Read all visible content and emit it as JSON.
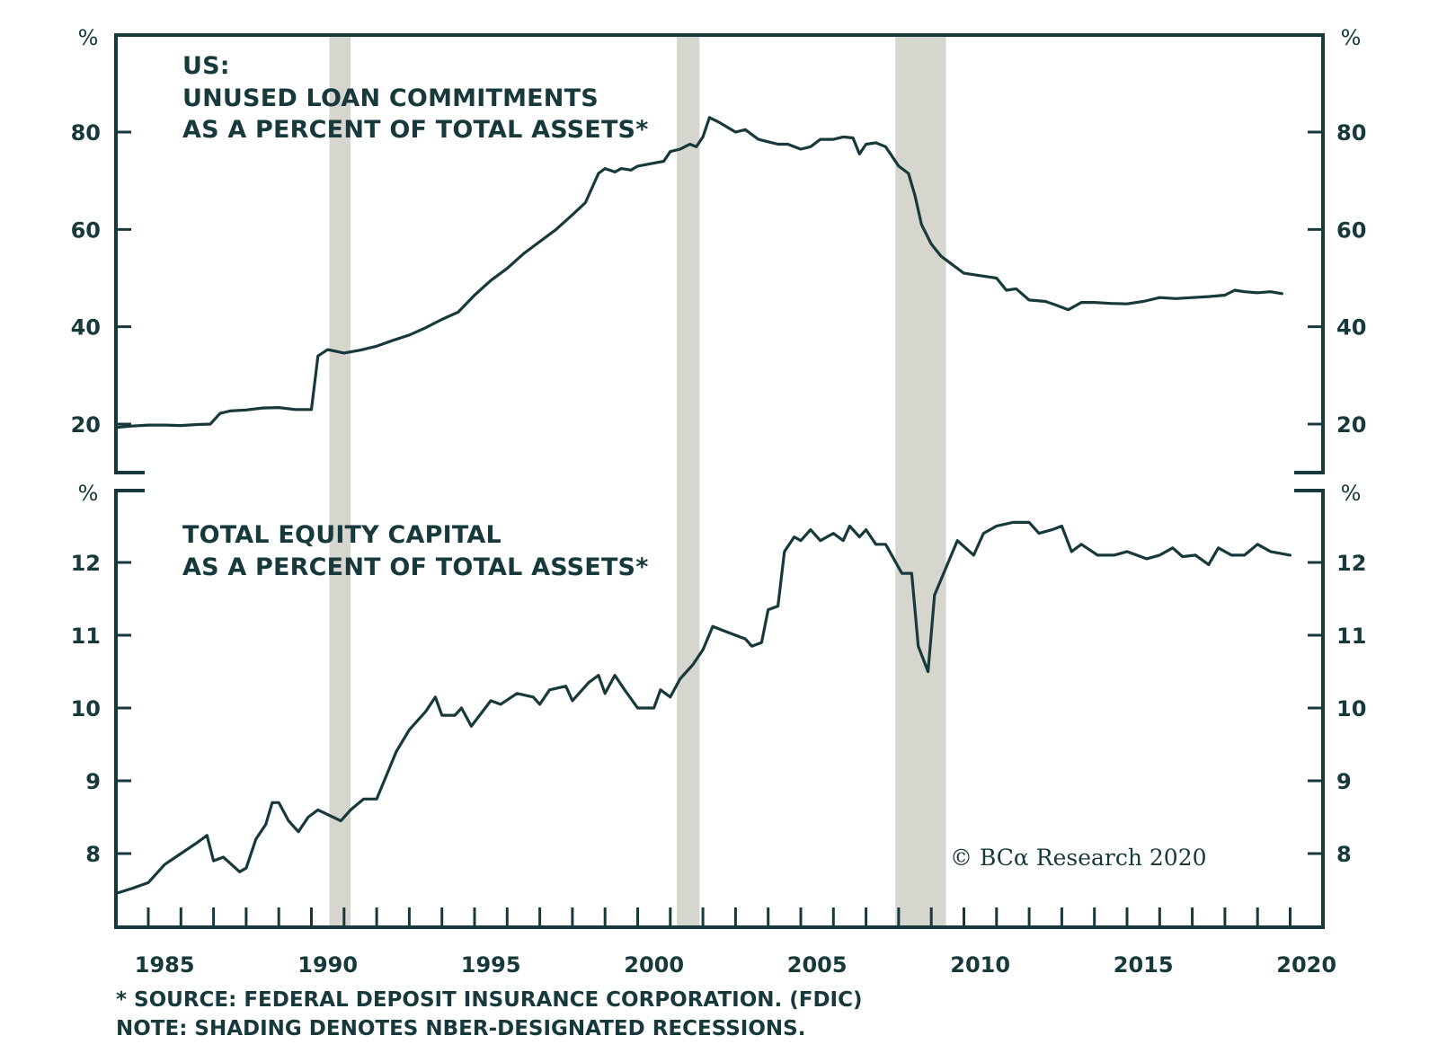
{
  "colors": {
    "line": "#17393c",
    "axis": "#17393c",
    "recession": "#d6d6cf",
    "background": "#ffffff"
  },
  "chart_data": [
    {
      "type": "line",
      "panel": "top",
      "title_lines": [
        "US:",
        "UNUSED LOAN COMMITMENTS",
        "AS A PERCENT OF TOTAL ASSETS*"
      ],
      "ylabel": "%",
      "ylim": [
        10,
        90
      ],
      "yticks": [
        20,
        40,
        60,
        80
      ],
      "ytick_labels": [
        "20",
        "40",
        "60",
        "80"
      ],
      "xlim": [
        1984.0,
        2021.0
      ],
      "grid": false,
      "series": [
        {
          "name": "Unused loan commitments as a percent of total assets",
          "x": [
            1984.0,
            1984.5,
            1985.0,
            1985.5,
            1986.0,
            1986.5,
            1986.9,
            1987.2,
            1987.5,
            1988.0,
            1988.5,
            1989.0,
            1989.5,
            1990.0,
            1990.2,
            1990.5,
            1991.0,
            1991.5,
            1992.0,
            1992.5,
            1993.0,
            1993.5,
            1994.0,
            1994.5,
            1995.0,
            1995.5,
            1996.0,
            1996.5,
            1997.0,
            1997.5,
            1998.0,
            1998.4,
            1998.8,
            1999.0,
            1999.3,
            1999.5,
            1999.8,
            2000.0,
            2000.4,
            2000.8,
            2001.0,
            2001.3,
            2001.6,
            2001.8,
            2002.0,
            2002.2,
            2002.5,
            2003.0,
            2003.3,
            2003.7,
            2004.0,
            2004.3,
            2004.6,
            2005.0,
            2005.3,
            2005.6,
            2006.0,
            2006.3,
            2006.6,
            2006.8,
            2007.0,
            2007.3,
            2007.6,
            2008.0,
            2008.3,
            2008.5,
            2008.7,
            2009.0,
            2009.3,
            2009.6,
            2010.0,
            2010.5,
            2011.0,
            2011.3,
            2011.6,
            2012.0,
            2012.5,
            2012.8,
            2013.2,
            2013.6,
            2014.0,
            2014.5,
            2015.0,
            2015.5,
            2016.0,
            2016.5,
            2017.0,
            2017.5,
            2018.0,
            2018.3,
            2018.6,
            2019.0,
            2019.4,
            2019.75
          ],
          "values": [
            19.3,
            19.6,
            19.8,
            19.8,
            19.7,
            19.9,
            20.0,
            22.2,
            22.7,
            22.9,
            23.3,
            23.4,
            23.0,
            23.0,
            34.0,
            35.3,
            34.6,
            35.2,
            36.0,
            37.2,
            38.3,
            39.8,
            41.5,
            43.0,
            46.5,
            49.5,
            52.0,
            55.0,
            57.5,
            60.0,
            63.0,
            65.5,
            71.5,
            72.5,
            71.8,
            72.5,
            72.2,
            73.0,
            73.5,
            74.0,
            76.0,
            76.5,
            77.5,
            77.0,
            79.0,
            83.0,
            82.0,
            80.0,
            80.5,
            78.5,
            78.0,
            77.5,
            77.5,
            76.5,
            77.0,
            78.5,
            78.5,
            79.0,
            78.8,
            75.5,
            77.5,
            77.8,
            77.0,
            73.0,
            71.5,
            67.0,
            61.0,
            57.0,
            54.5,
            53.0,
            51.0,
            50.5,
            50.0,
            47.5,
            47.8,
            45.5,
            45.2,
            44.5,
            43.5,
            45.0,
            45.0,
            44.8,
            44.7,
            45.2,
            46.0,
            45.8,
            46.0,
            46.2,
            46.5,
            47.5,
            47.2,
            47.0,
            47.2,
            46.8
          ]
        }
      ]
    },
    {
      "type": "line",
      "panel": "bottom",
      "title_lines": [
        "TOTAL EQUITY CAPITAL",
        "AS A PERCENT OF TOTAL ASSETS*"
      ],
      "ylabel": "%",
      "ylim": [
        7.0,
        12.9
      ],
      "yticks": [
        8,
        9,
        10,
        11,
        12
      ],
      "ytick_labels": [
        "8",
        "9",
        "10",
        "11",
        "12"
      ],
      "xlim": [
        1984.0,
        2021.0
      ],
      "xticks_major": [
        1985,
        1990,
        1995,
        2000,
        2005,
        2010,
        2015,
        2020
      ],
      "xtick_labels": [
        "1985",
        "1990",
        "1995",
        "2000",
        "2005",
        "2010",
        "2015",
        "2020"
      ],
      "xtick_minor_step": 1,
      "grid": false,
      "series": [
        {
          "name": "Total equity capital as a percent of total assets",
          "x": [
            1984.0,
            1984.5,
            1985.0,
            1985.5,
            1986.0,
            1986.5,
            1986.8,
            1987.0,
            1987.3,
            1987.8,
            1988.0,
            1988.3,
            1988.6,
            1988.8,
            1989.0,
            1989.3,
            1989.6,
            1989.9,
            1990.2,
            1990.9,
            1991.2,
            1991.6,
            1992.0,
            1992.6,
            1993.0,
            1993.5,
            1993.8,
            1994.0,
            1994.4,
            1994.6,
            1994.9,
            1995.5,
            1995.8,
            1996.3,
            1996.8,
            1997.0,
            1997.3,
            1997.8,
            1998.0,
            1998.5,
            1998.8,
            1999.0,
            1999.3,
            1999.6,
            2000.0,
            2000.5,
            2000.7,
            2001.0,
            2001.3,
            2001.7,
            2002.0,
            2002.3,
            2002.7,
            2003.0,
            2003.3,
            2003.5,
            2003.8,
            2004.0,
            2004.3,
            2004.5,
            2004.8,
            2005.0,
            2005.3,
            2005.6,
            2006.0,
            2006.3,
            2006.5,
            2006.8,
            2007.0,
            2007.3,
            2007.6,
            2008.1,
            2008.4,
            2008.6,
            2008.9,
            2009.1,
            2009.8,
            2010.3,
            2010.6,
            2011.0,
            2011.5,
            2012.0,
            2012.3,
            2012.7,
            2013.0,
            2013.3,
            2013.6,
            2014.1,
            2014.6,
            2015.0,
            2015.6,
            2016.0,
            2016.4,
            2016.7,
            2017.1,
            2017.5,
            2017.8,
            2018.2,
            2018.6,
            2019.0,
            2019.4,
            2020.0
          ],
          "values": [
            7.45,
            7.52,
            7.6,
            7.85,
            8.0,
            8.15,
            8.25,
            7.9,
            7.95,
            7.75,
            7.8,
            8.2,
            8.4,
            8.7,
            8.7,
            8.45,
            8.3,
            8.5,
            8.6,
            8.45,
            8.6,
            8.75,
            8.75,
            9.4,
            9.7,
            9.95,
            10.15,
            9.9,
            9.9,
            10.0,
            9.75,
            10.1,
            10.05,
            10.2,
            10.15,
            10.05,
            10.25,
            10.3,
            10.1,
            10.35,
            10.45,
            10.2,
            10.45,
            10.25,
            10.0,
            10.0,
            10.25,
            10.15,
            10.4,
            10.6,
            10.8,
            11.12,
            11.05,
            11.0,
            10.95,
            10.85,
            10.9,
            11.35,
            11.4,
            12.15,
            12.35,
            12.3,
            12.45,
            12.3,
            12.4,
            12.3,
            12.5,
            12.35,
            12.45,
            12.25,
            12.25,
            11.85,
            11.85,
            10.85,
            10.5,
            11.55,
            12.3,
            12.1,
            12.4,
            12.5,
            12.55,
            12.55,
            12.4,
            12.45,
            12.5,
            12.15,
            12.25,
            12.1,
            12.1,
            12.15,
            12.05,
            12.1,
            12.2,
            12.08,
            12.1,
            11.97,
            12.2,
            12.1,
            12.1,
            12.25,
            12.15,
            12.1
          ]
        }
      ]
    }
  ],
  "recessions": [
    {
      "label": "1990-91 recession",
      "start": 1990.55,
      "end": 1991.2
    },
    {
      "label": "2001 recession",
      "start": 2001.2,
      "end": 2001.9
    },
    {
      "label": "2007-09 recession",
      "start": 2007.9,
      "end": 2009.45
    }
  ],
  "right_axis": {
    "top_labels": [
      "20",
      "40",
      "60",
      "80"
    ],
    "bottom_labels": [
      "8",
      "9",
      "10",
      "11",
      "12"
    ],
    "unit": "%"
  },
  "footnotes": [
    "* SOURCE: FEDERAL DEPOSIT INSURANCE CORPORATION. (FDIC)",
    "NOTE: SHADING DENOTES NBER-DESIGNATED RECESSIONS."
  ],
  "copyright": "© BCα Research 2020"
}
